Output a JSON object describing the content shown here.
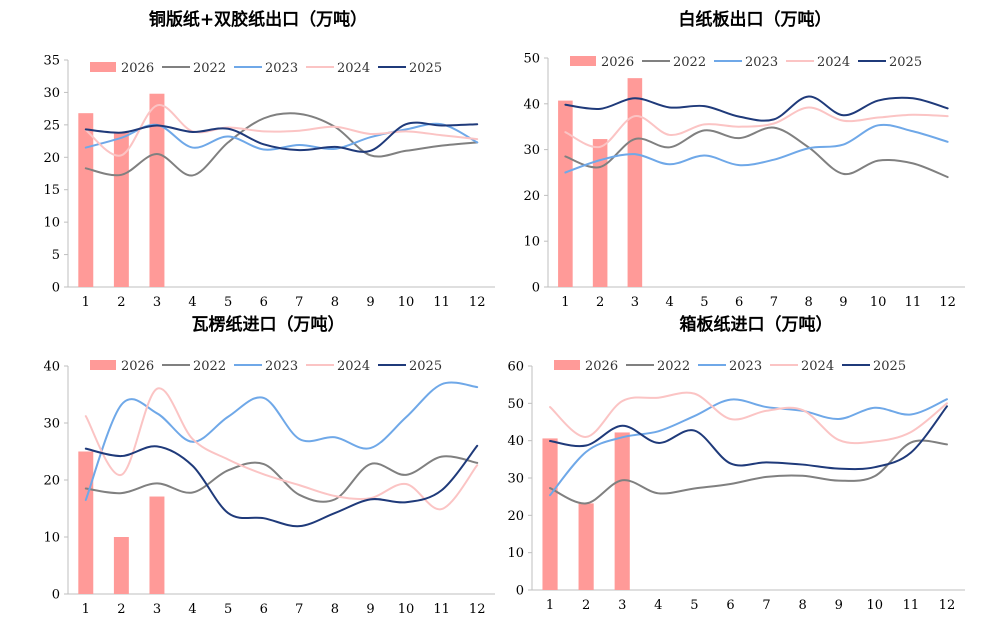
{
  "colors": {
    "2026": "#ff9a98",
    "2022": "#808080",
    "2023": "#6fa8e8",
    "2024": "#fbc4c4",
    "2025": "#1f3a7a",
    "axis": "#bfbfbf",
    "text": "#000000"
  },
  "legend_labels": [
    "2026",
    "2022",
    "2023",
    "2024",
    "2025"
  ],
  "chart_data": [
    {
      "type": "bar+line",
      "title": "铜版纸+双胶纸出口（万吨）",
      "categories": [
        "1",
        "2",
        "3",
        "4",
        "5",
        "6",
        "7",
        "8",
        "9",
        "10",
        "11",
        "12"
      ],
      "ylim": [
        0,
        35
      ],
      "yticks": [
        0,
        5,
        10,
        15,
        20,
        25,
        30,
        35
      ],
      "bar_series": {
        "name": "2026",
        "values": [
          26.8,
          23.9,
          29.8
        ]
      },
      "series": [
        {
          "name": "2022",
          "values": [
            18.3,
            17.3,
            20.5,
            17.2,
            22.3,
            26.0,
            26.7,
            24.7,
            20.3,
            21.0,
            21.8,
            22.3
          ]
        },
        {
          "name": "2023",
          "values": [
            21.5,
            23.0,
            25.0,
            21.5,
            23.2,
            21.2,
            21.9,
            21.3,
            23.1,
            24.3,
            25.1,
            22.3
          ]
        },
        {
          "name": "2024",
          "values": [
            24.2,
            20.3,
            28.0,
            24.0,
            24.6,
            24.0,
            24.1,
            24.7,
            23.6,
            24.0,
            23.4,
            22.8
          ]
        },
        {
          "name": "2025",
          "values": [
            24.3,
            23.8,
            24.9,
            23.9,
            24.4,
            22.0,
            21.1,
            21.6,
            21.0,
            25.1,
            24.9,
            25.1
          ]
        }
      ],
      "legend_position": "top"
    },
    {
      "type": "bar+line",
      "title": "白纸板出口（万吨）",
      "categories": [
        "1",
        "2",
        "3",
        "4",
        "5",
        "6",
        "7",
        "8",
        "9",
        "10",
        "11",
        "12"
      ],
      "ylim": [
        0,
        50
      ],
      "yticks": [
        0,
        10,
        20,
        30,
        40,
        50
      ],
      "bar_series": {
        "name": "2026",
        "values": [
          40.7,
          32.3,
          45.6
        ]
      },
      "series": [
        {
          "name": "2022",
          "values": [
            28.5,
            26.2,
            32.3,
            30.5,
            34.2,
            32.5,
            34.8,
            30.5,
            24.7,
            27.6,
            27.0,
            24.0
          ]
        },
        {
          "name": "2023",
          "values": [
            25.0,
            27.7,
            29.0,
            26.8,
            28.7,
            26.6,
            27.8,
            30.3,
            31.1,
            35.3,
            34.0,
            31.7
          ]
        },
        {
          "name": "2024",
          "values": [
            33.8,
            30.6,
            37.3,
            33.2,
            35.5,
            35.0,
            35.7,
            39.2,
            36.3,
            37.0,
            37.6,
            37.3
          ]
        },
        {
          "name": "2025",
          "values": [
            39.8,
            38.9,
            41.2,
            39.2,
            39.5,
            37.2,
            36.6,
            41.6,
            37.5,
            40.7,
            41.2,
            39.0
          ]
        }
      ],
      "legend_position": "top"
    },
    {
      "type": "bar+line",
      "title": "瓦楞纸进口（万吨）",
      "categories": [
        "1",
        "2",
        "3",
        "4",
        "5",
        "6",
        "7",
        "8",
        "9",
        "10",
        "11",
        "12"
      ],
      "ylim": [
        0,
        40
      ],
      "yticks": [
        0,
        10,
        20,
        30,
        40
      ],
      "bar_series": {
        "name": "2026",
        "values": [
          25.0,
          10.0,
          17.1
        ]
      },
      "series": [
        {
          "name": "2022",
          "values": [
            18.5,
            17.7,
            19.4,
            17.8,
            21.7,
            22.8,
            17.4,
            16.6,
            22.8,
            20.9,
            24.1,
            23.0
          ]
        },
        {
          "name": "2023",
          "values": [
            16.5,
            33.2,
            31.7,
            26.7,
            31.1,
            34.4,
            27.2,
            27.5,
            25.6,
            31.0,
            36.8,
            36.3
          ]
        },
        {
          "name": "2024",
          "values": [
            31.2,
            20.9,
            36.0,
            27.2,
            23.6,
            21.0,
            19.1,
            17.2,
            16.8,
            19.3,
            14.9,
            22.6
          ]
        },
        {
          "name": "2025",
          "values": [
            25.5,
            24.2,
            25.9,
            22.5,
            14.2,
            13.3,
            11.9,
            14.2,
            16.6,
            16.1,
            18.2,
            26.0
          ]
        }
      ],
      "legend_position": "top"
    },
    {
      "type": "bar+line",
      "title": "箱板纸进口（万吨）",
      "categories": [
        "1",
        "2",
        "3",
        "4",
        "5",
        "6",
        "7",
        "8",
        "9",
        "10",
        "11",
        "12"
      ],
      "ylim": [
        0,
        60
      ],
      "yticks": [
        0,
        10,
        20,
        30,
        40,
        50,
        60
      ],
      "bar_series": {
        "name": "2026",
        "values": [
          40.6,
          23.2,
          42.2
        ]
      },
      "series": [
        {
          "name": "2022",
          "values": [
            27.3,
            23.2,
            29.4,
            25.9,
            27.2,
            28.4,
            30.3,
            30.6,
            29.3,
            30.5,
            39.5,
            39.0
          ]
        },
        {
          "name": "2023",
          "values": [
            25.4,
            37.0,
            40.9,
            42.5,
            46.6,
            51.0,
            49.0,
            48.0,
            45.8,
            48.8,
            47.0,
            51.1
          ]
        },
        {
          "name": "2024",
          "values": [
            49.0,
            41.0,
            50.6,
            51.5,
            52.6,
            45.8,
            48.0,
            48.2,
            40.2,
            39.8,
            42.3,
            50.0
          ]
        },
        {
          "name": "2025",
          "values": [
            39.9,
            38.7,
            44.0,
            39.4,
            42.7,
            33.9,
            34.2,
            33.6,
            32.5,
            32.9,
            36.8,
            49.2
          ]
        }
      ],
      "legend_position": "top"
    }
  ]
}
